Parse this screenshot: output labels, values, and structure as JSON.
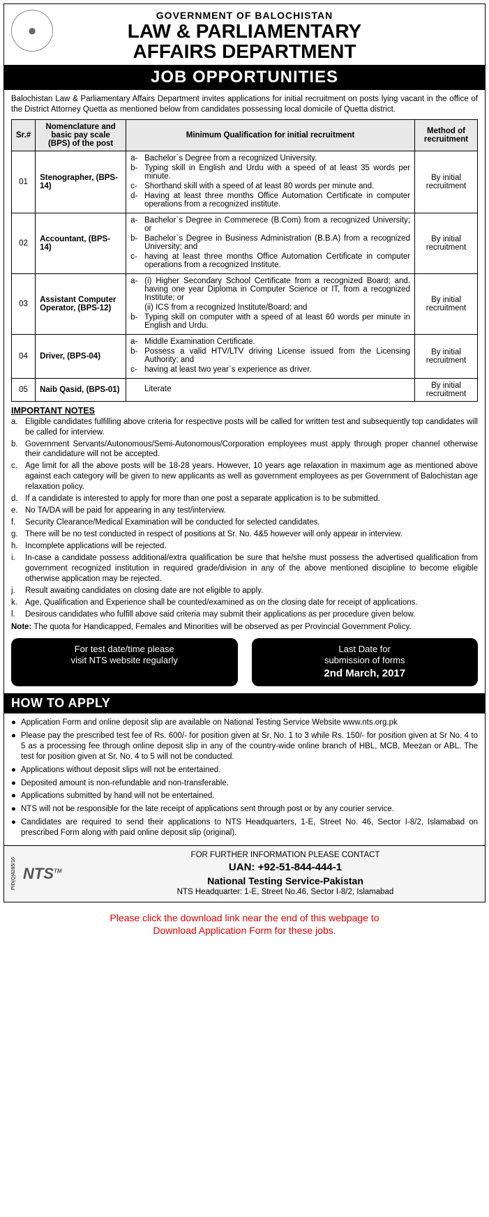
{
  "header": {
    "gov": "GOVERNMENT OF BALOCHISTAN",
    "dept1": "LAW & PARLIAMENTARY",
    "dept2": "AFFAIRS DEPARTMENT",
    "bar": "JOB OPPORTUNITIES"
  },
  "intro": "Balochistan Law & Parliamentary Affairs Department invites applications for initial recruitment on posts lying vacant in the office of the District Attorney Quetta as mentioned below from candidates possessing local domicile of Quetta district.",
  "table": {
    "headers": {
      "sr": "Sr.#",
      "post": "Nomenclature and basic pay scale (BPS) of the post",
      "qual": "Minimum Qualification for initial recruitment",
      "method": "Method of recruitment"
    },
    "rows": [
      {
        "sr": "01",
        "post": "Stenographer, (BPS-14)",
        "qual": [
          {
            "pre": "a-",
            "txt": "Bachelor`s Degree from a recognized University."
          },
          {
            "pre": "b-",
            "txt": "Typing skill in English and Urdu with a speed of at least 35 words per minute."
          },
          {
            "pre": "c-",
            "txt": "Shorthand skill with a speed of at least 80 words per minute and."
          },
          {
            "pre": "d-",
            "txt": "Having at least three months Office Automation Certificate in computer operations from a recognized institute."
          }
        ],
        "method": "By initial recruitment"
      },
      {
        "sr": "02",
        "post": "Accountant, (BPS-14)",
        "qual": [
          {
            "pre": "a-",
            "txt": "Bachelor`s Degree in Commerece (B.Com) from  a recognized University; or"
          },
          {
            "pre": "b-",
            "txt": "Bachelor`s Degree in Business Administration (B.B.A) from a recognized University; and"
          },
          {
            "pre": "c-",
            "txt": "having at least three months Office Automation Certificate in computer operations from a recognized Institute."
          }
        ],
        "method": "By initial recruitment"
      },
      {
        "sr": "03",
        "post": "Assistant Computer Operator, (BPS-12)",
        "qual": [
          {
            "pre": "a-",
            "txt": "(i) Higher Secondary School Certificate from a recognized Board; and. having one year  Diploma in  Computer Science or IT, from a recognized Institute; or"
          },
          {
            "pre": "",
            "txt": "(ii) ICS from a recognized Institute/Board; and"
          },
          {
            "pre": "b-",
            "txt": "Typing skill on computer with a speed of at least 60 words per minute in English and Urdu."
          }
        ],
        "method": "By initial recruitment"
      },
      {
        "sr": "04",
        "post": "Driver, (BPS-04)",
        "qual": [
          {
            "pre": "a-",
            "txt": "Middle Examination Certificate."
          },
          {
            "pre": "b-",
            "txt": "Possess a valid HTV/LTV driving License issued from the Licensing Authority; and"
          },
          {
            "pre": "c-",
            "txt": "having at least two year`s experience as driver."
          }
        ],
        "method": "By initial recruitment"
      },
      {
        "sr": "05",
        "post": "Naib Qasid, (BPS-01)",
        "qual": [
          {
            "pre": "",
            "txt": "Literate"
          }
        ],
        "method": "By initial recruitment"
      }
    ]
  },
  "notes_title": "IMPORTANT NOTES",
  "notes": [
    {
      "pre": "a.",
      "txt": "Eligible candidates fulfilling above criteria for respective posts will be called for written test and subsequently top candidates will be called for interview."
    },
    {
      "pre": "b.",
      "txt": "Government Servants/Autonomous/Semi-Autonomous/Corporation employees must apply through proper channel otherwise their candidature will not be accepted."
    },
    {
      "pre": "c.",
      "txt": "Age limit for all the above posts will be 18-28 years. However, 10 years age relaxation in maximum age as mentioned above against each category will be given to new applicants as well as government employees as per Government of Balochistan age relaxation policy."
    },
    {
      "pre": "d.",
      "txt": "If a candidate is interested to apply for more than one post a separate application is to be submitted."
    },
    {
      "pre": "e.",
      "txt": "No TA/DA will be paid for appearing in any test/interview."
    },
    {
      "pre": "f.",
      "txt": "Security Clearance/Medical Examination will be conducted for selected candidates."
    },
    {
      "pre": "g.",
      "txt": "There will be no test conducted in respect of positions at Sr. No. 4&5 however will only appear in interview."
    },
    {
      "pre": "h.",
      "txt": "Incomplete applications will be rejected."
    },
    {
      "pre": "i.",
      "txt": "In-case a candidate possess additional/extra qualification be sure that he/she must possess the advertised qualification from government recognized institution in required grade/division in any of the above mentioned discipline to become eligible otherwise application may be rejected."
    },
    {
      "pre": "j.",
      "txt": "Result awaiting candidates on closing date are not eligible to apply."
    },
    {
      "pre": "k.",
      "txt": "Age, Qualification and Experience shall be counted/examined as on the closing date for receipt of applications."
    },
    {
      "pre": "l.",
      "txt": "Desirous candidates who fulfill above said criteria may submit their applications as per procedure given below."
    }
  ],
  "note_bold_label": "Note:",
  "note_bold": " The quota for Handicapped, Females and Minorities will be observed as per Provincial Government Policy.",
  "box1_l1": "For test date/time please",
  "box1_l2": "visit NTS website regularly",
  "box2_l1": "Last Date for",
  "box2_l2": "submission of forms",
  "box2_l3": "2nd March, 2017",
  "howto_bar": "HOW TO APPLY",
  "howto": [
    "Application Form and online deposit slip are available on National Testing Service Website www.nts.org.pk",
    "Please pay the prescribed test fee of Rs. 600/- for position given at Sr. No. 1 to 3 while Rs. 150/- for position given at Sr No. 4 to 5 as a processing fee through online deposit slip in any of the country-wide online branch of HBL, MCB, Meezan or ABL. The test for position given at Sr. No. 4 to 5 will not be conducted.",
    "Applications without deposit slips will not be entertained.",
    "Deposited amount is non-refundable and non-transferable.",
    "Applications submitted by hand will not be entertained.",
    "NTS will not be responsible for the late receipt of applications sent through post or by any courier service.",
    "Candidates are required to send their applications to NTS Headquarters, 1-E, Street No. 46, Sector I-8/2, Islamabad on prescribed Form along with paid online deposit slip (original)."
  ],
  "footer": {
    "contact": "FOR FURTHER INFORMATION PLEASE CONTACT",
    "uan": "UAN: +92-51-844-444-1",
    "nts": "National Testing Service-Pakistan",
    "addr": "NTS Headquarter: 1-E, Street No.46, Sector I-8/2, Islamabad",
    "logo": "NTS",
    "tm": "TM"
  },
  "red1": "Please click the download link near the end of this webpage to",
  "red2": "Download Application Form for these jobs.",
  "pid": "PID(Q)4285/16"
}
